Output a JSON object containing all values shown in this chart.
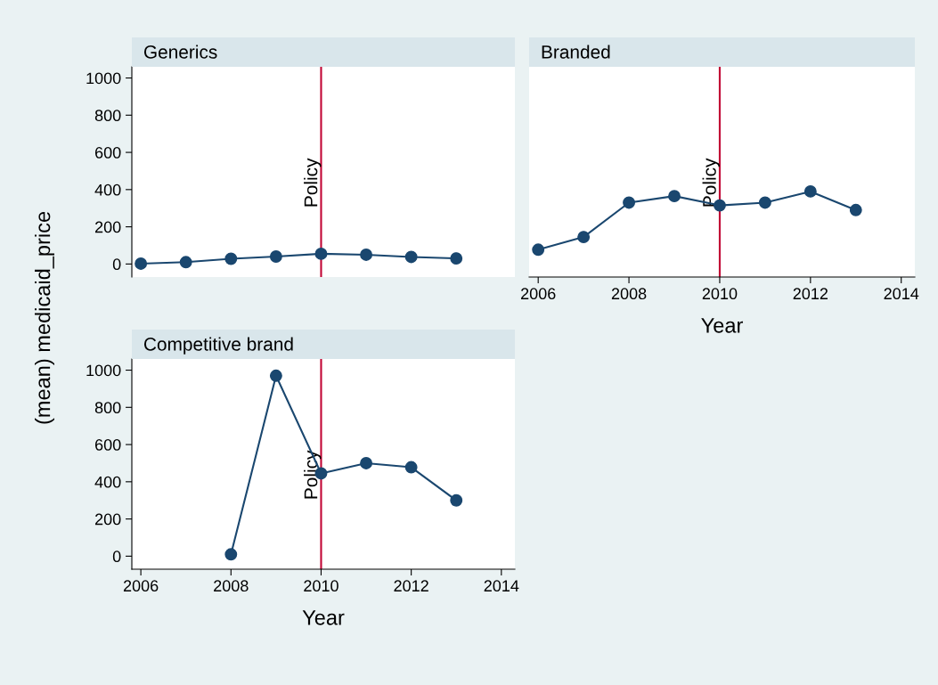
{
  "chart_data": [
    {
      "type": "line",
      "title": "Generics",
      "ylabel": "(mean) medicaid_price",
      "x": [
        2006,
        2007,
        2008,
        2009,
        2010,
        2011,
        2012,
        2013
      ],
      "series": [
        {
          "color": "#1a476f",
          "values": [
            2,
            10,
            28,
            40,
            55,
            50,
            38,
            30
          ]
        }
      ],
      "marker": "circle",
      "xlim": [
        2005.8,
        2014.3
      ],
      "ylim": [
        -70,
        1060
      ],
      "xticks": [
        2006,
        2008,
        2010,
        2012,
        2014
      ],
      "yticks": [
        0,
        200,
        400,
        600,
        800,
        1000
      ],
      "tick_labels": "y",
      "grid": false,
      "legend": false,
      "ref_lines": [
        {
          "axis": "x",
          "value": 2010,
          "color": "#c10534",
          "label": "Policy"
        }
      ]
    },
    {
      "type": "line",
      "title": "Branded",
      "xlabel": "Year",
      "x": [
        2006,
        2007,
        2008,
        2009,
        2010,
        2011,
        2012,
        2013
      ],
      "series": [
        {
          "color": "#1a476f",
          "values": [
            77,
            145,
            330,
            365,
            315,
            330,
            390,
            290
          ]
        }
      ],
      "marker": "circle",
      "xlim": [
        2005.8,
        2014.3
      ],
      "ylim": [
        -70,
        1060
      ],
      "xticks": [
        2006,
        2008,
        2010,
        2012,
        2014
      ],
      "yticks": [
        0,
        200,
        400,
        600,
        800,
        1000
      ],
      "tick_labels": "x",
      "grid": false,
      "legend": false,
      "ref_lines": [
        {
          "axis": "x",
          "value": 2010,
          "color": "#c10534",
          "label": "Policy"
        }
      ]
    },
    {
      "type": "line",
      "title": "Competitive brand",
      "xlabel": "Year",
      "x": [
        2008,
        2009,
        2010,
        2011,
        2012,
        2013
      ],
      "series": [
        {
          "color": "#1a476f",
          "values": [
            10,
            970,
            445,
            500,
            478,
            300
          ]
        }
      ],
      "marker": "circle",
      "xlim": [
        2005.8,
        2014.3
      ],
      "ylim": [
        -70,
        1060
      ],
      "xticks": [
        2006,
        2008,
        2010,
        2012,
        2014
      ],
      "yticks": [
        0,
        200,
        400,
        600,
        800,
        1000
      ],
      "grid": false,
      "legend": false,
      "ref_lines": [
        {
          "axis": "x",
          "value": 2010,
          "color": "#c10534",
          "label": "Policy"
        }
      ]
    }
  ]
}
